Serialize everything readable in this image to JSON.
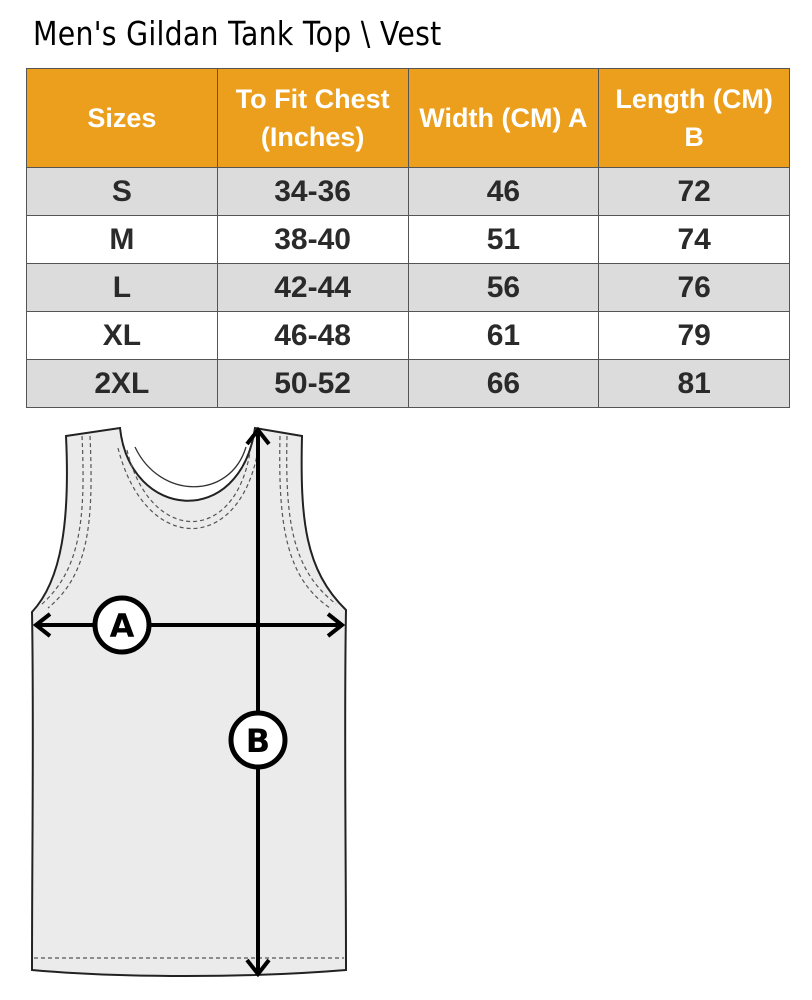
{
  "title": "Men's Gildan Tank Top \\ Vest",
  "table": {
    "headers": [
      "Sizes",
      "To Fit Chest (Inches)",
      "Width (CM) A",
      "Length  (CM) B"
    ],
    "header_lines": [
      [
        "Sizes"
      ],
      [
        "To Fit Chest",
        "(Inches)"
      ],
      [
        "Width (CM) A"
      ],
      [
        "Length  (CM)",
        "B"
      ]
    ],
    "rows": [
      [
        "S",
        "34-36",
        "46",
        "72"
      ],
      [
        "M",
        "38-40",
        "51",
        "74"
      ],
      [
        "L",
        "42-44",
        "56",
        "76"
      ],
      [
        "XL",
        "46-48",
        "61",
        "79"
      ],
      [
        "2XL",
        "50-52",
        "66",
        "81"
      ]
    ]
  },
  "diagram": {
    "label_a": "A",
    "label_b": "B",
    "garment_color": "#ebebeb"
  },
  "colors": {
    "header_bg": "#eb9f1c",
    "row_alt_bg": "#dcdcdc"
  }
}
